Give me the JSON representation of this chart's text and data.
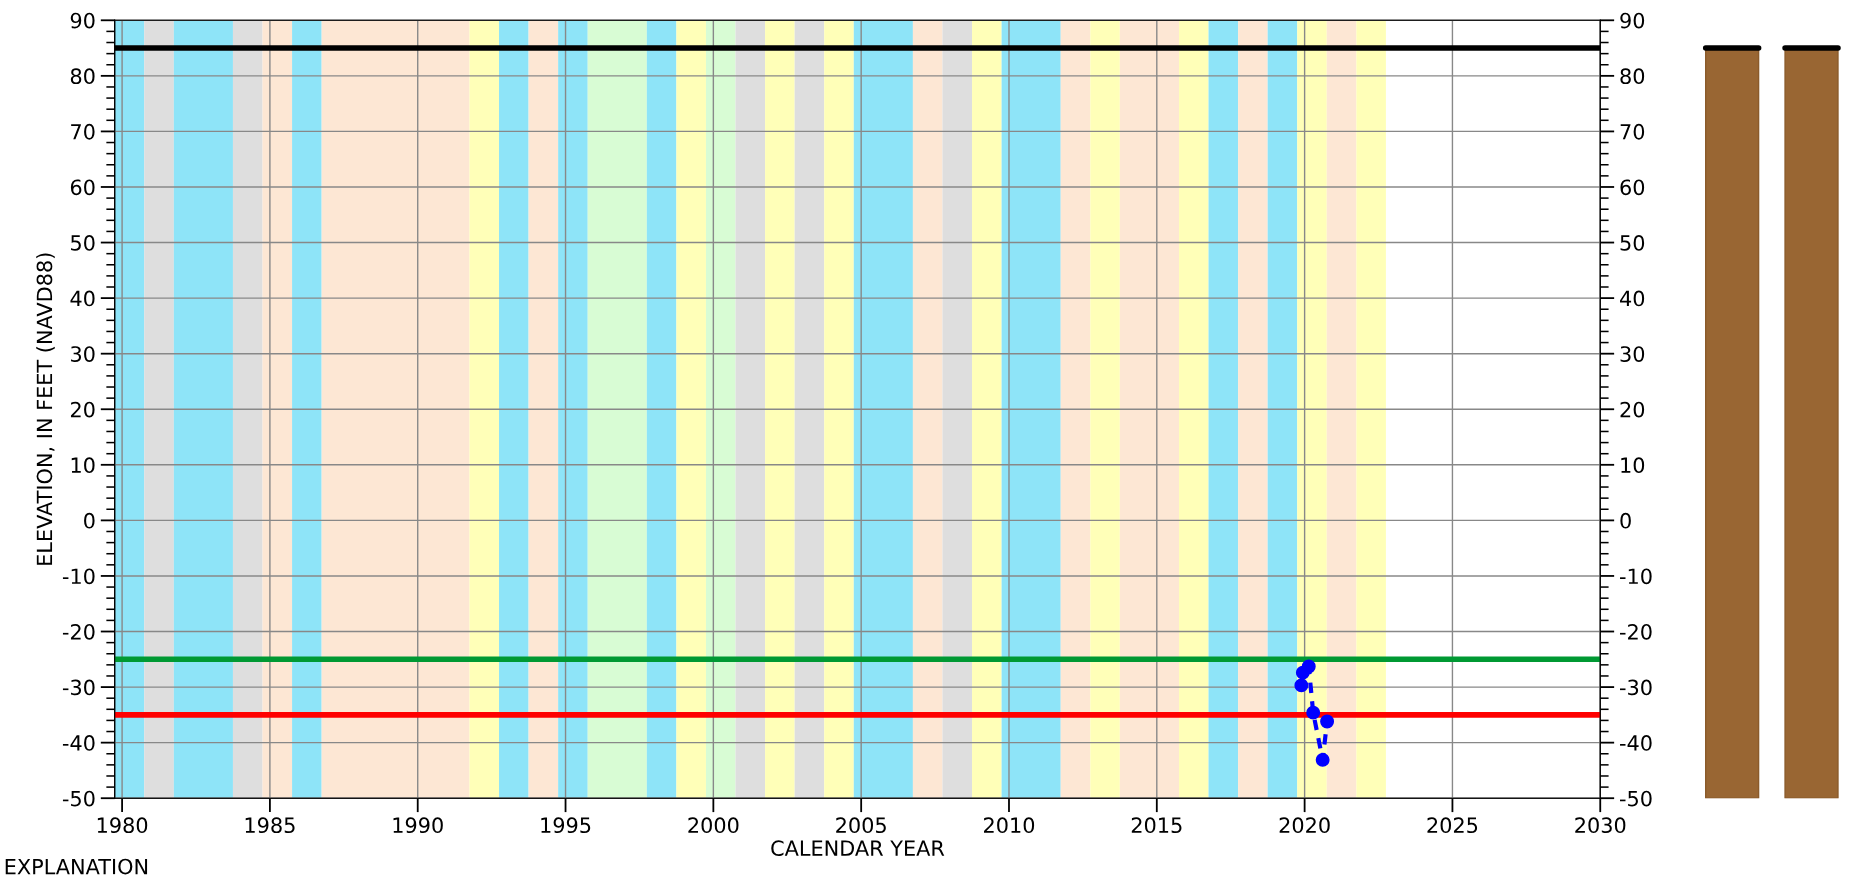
{
  "chart_data": {
    "type": "line",
    "xlabel": "CALENDAR YEAR",
    "ylabel": "ELEVATION, IN FEET (NAVD88)",
    "annotations": [
      "EXPLANATION"
    ],
    "series": [
      {
        "color": "#0000ff",
        "x": [
          2019.89,
          2019.94,
          2020.14,
          2020.29,
          2020.61,
          2020.76
        ],
        "values": [
          -29.7,
          -27.4,
          -26.3,
          -34.6,
          -43.1,
          -36.2
        ]
      }
    ],
    "marker": "circle",
    "line_style": "dashed",
    "xlim": [
      1979.75,
      2030
    ],
    "xticks": [
      1980,
      1985,
      1990,
      1995,
      2000,
      2005,
      2010,
      2015,
      2020,
      2025,
      2030
    ],
    "ylim": [
      -50,
      90
    ],
    "yticks": [
      -50,
      -40,
      -30,
      -20,
      -10,
      0,
      10,
      20,
      30,
      40,
      50,
      60,
      70,
      80,
      90
    ],
    "y2lim": [
      -50,
      90
    ],
    "y2ticks": [
      -50,
      -40,
      -30,
      -20,
      -10,
      0,
      10,
      20,
      30,
      40,
      50,
      60,
      70,
      80,
      90
    ],
    "grid": true,
    "ref_lines": [
      {
        "axis": "y",
        "value": 85,
        "color": "#000000"
      },
      {
        "axis": "y",
        "value": -25,
        "color": "#009933"
      },
      {
        "axis": "y",
        "value": -35,
        "color": "#ff0000"
      }
    ],
    "bands": [
      {
        "axis": "x",
        "from": 1979.75,
        "to": 1980.75,
        "color": "#8ee4f8"
      },
      {
        "axis": "x",
        "from": 1980.75,
        "to": 1981.75,
        "color": "#dedede"
      },
      {
        "axis": "x",
        "from": 1981.75,
        "to": 1983.75,
        "color": "#8ee4f8"
      },
      {
        "axis": "x",
        "from": 1983.75,
        "to": 1984.75,
        "color": "#dedede"
      },
      {
        "axis": "x",
        "from": 1984.75,
        "to": 1985.75,
        "color": "#fde7d4"
      },
      {
        "axis": "x",
        "from": 1985.75,
        "to": 1986.75,
        "color": "#8ee4f8"
      },
      {
        "axis": "x",
        "from": 1986.75,
        "to": 1991.75,
        "color": "#fde7d4"
      },
      {
        "axis": "x",
        "from": 1991.75,
        "to": 1992.75,
        "color": "#ffffb8"
      },
      {
        "axis": "x",
        "from": 1992.75,
        "to": 1993.75,
        "color": "#8ee4f8"
      },
      {
        "axis": "x",
        "from": 1993.75,
        "to": 1994.75,
        "color": "#fde7d4"
      },
      {
        "axis": "x",
        "from": 1994.75,
        "to": 1995.75,
        "color": "#8ee4f8"
      },
      {
        "axis": "x",
        "from": 1995.75,
        "to": 1997.75,
        "color": "#d8fcd4"
      },
      {
        "axis": "x",
        "from": 1997.75,
        "to": 1998.75,
        "color": "#8ee4f8"
      },
      {
        "axis": "x",
        "from": 1998.75,
        "to": 1999.75,
        "color": "#ffffb8"
      },
      {
        "axis": "x",
        "from": 1999.75,
        "to": 2000.75,
        "color": "#d8fcd4"
      },
      {
        "axis": "x",
        "from": 2000.75,
        "to": 2001.75,
        "color": "#dedede"
      },
      {
        "axis": "x",
        "from": 2001.75,
        "to": 2002.75,
        "color": "#ffffb8"
      },
      {
        "axis": "x",
        "from": 2002.75,
        "to": 2003.75,
        "color": "#dedede"
      },
      {
        "axis": "x",
        "from": 2003.75,
        "to": 2004.75,
        "color": "#ffffb8"
      },
      {
        "axis": "x",
        "from": 2004.75,
        "to": 2006.75,
        "color": "#8ee4f8"
      },
      {
        "axis": "x",
        "from": 2006.75,
        "to": 2007.75,
        "color": "#fde7d4"
      },
      {
        "axis": "x",
        "from": 2007.75,
        "to": 2008.75,
        "color": "#dedede"
      },
      {
        "axis": "x",
        "from": 2008.75,
        "to": 2009.75,
        "color": "#ffffb8"
      },
      {
        "axis": "x",
        "from": 2009.75,
        "to": 2011.75,
        "color": "#8ee4f8"
      },
      {
        "axis": "x",
        "from": 2011.75,
        "to": 2012.75,
        "color": "#fde7d4"
      },
      {
        "axis": "x",
        "from": 2012.75,
        "to": 2013.75,
        "color": "#ffffb8"
      },
      {
        "axis": "x",
        "from": 2013.75,
        "to": 2015.75,
        "color": "#fde7d4"
      },
      {
        "axis": "x",
        "from": 2015.75,
        "to": 2016.75,
        "color": "#ffffb8"
      },
      {
        "axis": "x",
        "from": 2016.75,
        "to": 2017.75,
        "color": "#8ee4f8"
      },
      {
        "axis": "x",
        "from": 2017.75,
        "to": 2018.75,
        "color": "#fde7d4"
      },
      {
        "axis": "x",
        "from": 2018.75,
        "to": 2019.75,
        "color": "#8ee4f8"
      },
      {
        "axis": "x",
        "from": 2019.75,
        "to": 2020.75,
        "color": "#ffffb8"
      },
      {
        "axis": "x",
        "from": 2020.75,
        "to": 2021.75,
        "color": "#fde7d4"
      },
      {
        "axis": "x",
        "from": 2021.75,
        "to": 2022.75,
        "color": "#ffffb8"
      }
    ]
  }
}
